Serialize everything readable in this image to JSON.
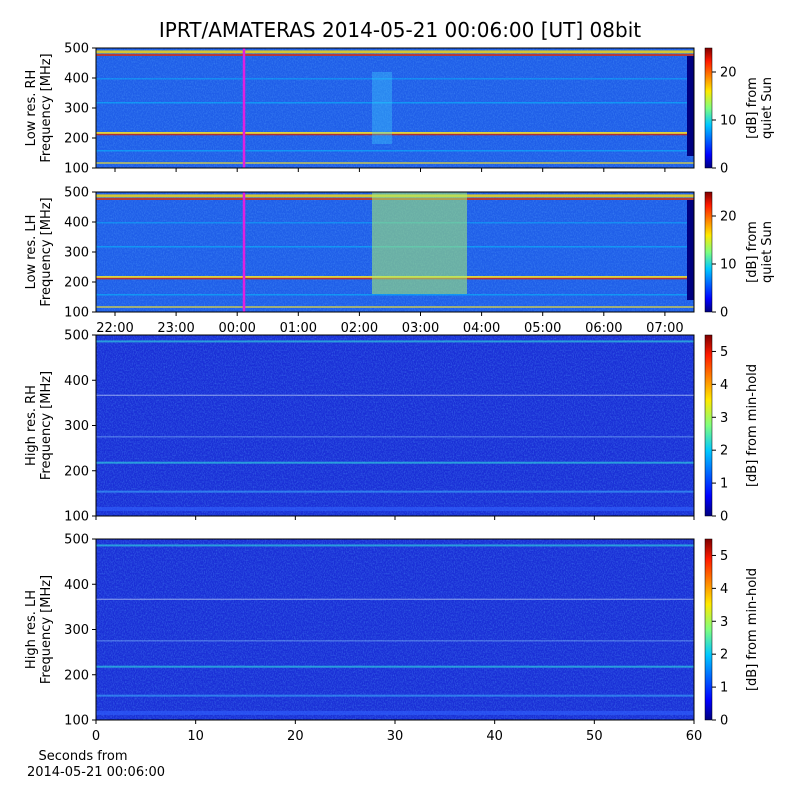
{
  "title": "IPRT/AMATERAS 2014-05-21 00:06:00 [UT]   08bit",
  "chart_data": [
    {
      "type": "spectrogram",
      "ylabel": [
        "Low res. RH",
        "Frequency [MHz]"
      ],
      "ylim": [
        100,
        500
      ],
      "yticks": [
        100,
        200,
        300,
        400,
        500
      ],
      "colorbar_label": [
        "[dB] from",
        "quiet Sun"
      ],
      "clim": [
        0,
        25
      ],
      "cticks": [
        0,
        10,
        20
      ]
    },
    {
      "type": "spectrogram",
      "ylabel": [
        "Low res. LH",
        "Frequency [MHz]"
      ],
      "ylim": [
        100,
        500
      ],
      "yticks": [
        100,
        200,
        300,
        400,
        500
      ],
      "colorbar_label": [
        "[dB] from",
        "quiet Sun"
      ],
      "clim": [
        0,
        25
      ],
      "cticks": [
        0,
        10,
        20
      ],
      "xtick_labels": [
        "22:00",
        "23:00",
        "00:00",
        "01:00",
        "02:00",
        "03:00",
        "04:00",
        "05:00",
        "06:00",
        "07:00"
      ]
    },
    {
      "type": "spectrogram",
      "ylabel": [
        "High res. RH",
        "Frequency [MHz]"
      ],
      "ylim": [
        100,
        500
      ],
      "yticks": [
        100,
        200,
        300,
        400,
        500
      ],
      "colorbar_label": [
        "[dB] from min-hold"
      ],
      "clim": [
        0,
        5.5
      ],
      "cticks": [
        0,
        1,
        2,
        3,
        4,
        5
      ]
    },
    {
      "type": "spectrogram",
      "ylabel": [
        "High res. LH",
        "Frequency [MHz]"
      ],
      "ylim": [
        100,
        500
      ],
      "yticks": [
        100,
        200,
        300,
        400,
        500
      ],
      "colorbar_label": [
        "[dB] from min-hold"
      ],
      "clim": [
        0,
        5.5
      ],
      "cticks": [
        0,
        1,
        2,
        3,
        4,
        5
      ],
      "xlim": [
        0,
        60
      ],
      "xticks": [
        0,
        10,
        20,
        30,
        40,
        50,
        60
      ],
      "xlabel": [
        "Seconds from",
        "2014-05-21 00:06:00"
      ]
    }
  ]
}
